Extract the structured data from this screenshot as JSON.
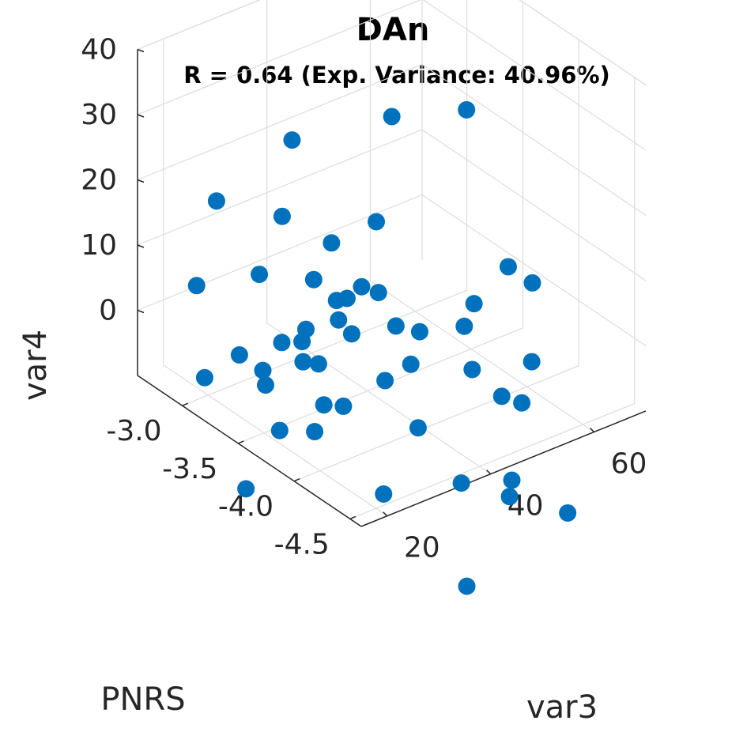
{
  "chart_data": {
    "type": "scatter3d",
    "title": "DAn",
    "subtitle": "R = 0.64 (Exp. Variance: 40.96%)",
    "xlabel": "PNRS",
    "ylabel": "var3",
    "zlabel": "var4",
    "xlim": [
      -4.6,
      -2.6
    ],
    "ylim": [
      15,
      70
    ],
    "zlim": [
      -10,
      40
    ],
    "xticks": [
      -3.0,
      -3.5,
      -4.0,
      -4.5
    ],
    "xtick_labels": [
      "-3.0",
      "-3.5",
      "-4.0",
      "-4.5"
    ],
    "yticks": [
      20,
      40,
      60
    ],
    "ytick_labels": [
      "20",
      "40",
      "60"
    ],
    "zticks": [
      0,
      10,
      20,
      30,
      40
    ],
    "ztick_labels": [
      "0",
      "10",
      "20",
      "30",
      "40"
    ],
    "grid": true,
    "marker_color": "#0072BD",
    "points": [
      {
        "x": -3.16,
        "y": 57.6,
        "z": 47.98
      },
      {
        "x": -3.46,
        "y": 60.0,
        "z": 26.21
      },
      {
        "x": -3.12,
        "y": 52.9,
        "z": 23.52
      },
      {
        "x": -3.01,
        "y": 36.0,
        "z": 24.09
      },
      {
        "x": -2.95,
        "y": 22.7,
        "z": 18.33
      },
      {
        "x": -3.43,
        "y": 43.2,
        "z": 14.11
      },
      {
        "x": -3.0,
        "y": 34.3,
        "z": 12.82
      },
      {
        "x": -3.27,
        "y": 38.0,
        "z": 10.68
      },
      {
        "x": -2.98,
        "y": 18.2,
        "z": 7.15
      },
      {
        "x": -3.18,
        "y": 26.0,
        "z": 8.68
      },
      {
        "x": -3.25,
        "y": 35.0,
        "z": 5.79
      },
      {
        "x": -3.41,
        "y": 40.8,
        "z": 4.68
      },
      {
        "x": -3.5,
        "y": 42.1,
        "z": 4.41
      },
      {
        "x": -3.38,
        "y": 36.6,
        "z": 3.58
      },
      {
        "x": -3.39,
        "y": 38.4,
        "z": 3.43
      },
      {
        "x": -3.68,
        "y": 63.3,
        "z": 3.63
      },
      {
        "x": -3.78,
        "y": 65.8,
        "z": 1.51
      },
      {
        "x": -3.43,
        "y": 35.9,
        "z": 1.4
      },
      {
        "x": -3.37,
        "y": 30.9,
        "z": 0.87
      },
      {
        "x": -3.33,
        "y": 27.1,
        "z": -0.39
      },
      {
        "x": -3.52,
        "y": 36.5,
        "z": 0.11
      },
      {
        "x": -3.67,
        "y": 56.9,
        "z": -0.09
      },
      {
        "x": -3.34,
        "y": 30.8,
        "z": -1.32
      },
      {
        "x": -3.21,
        "y": 21.5,
        "z": -1.88
      },
      {
        "x": -3.55,
        "y": 44.4,
        "z": -0.88
      },
      {
        "x": -3.68,
        "y": 54.8,
        "z": -2.76
      },
      {
        "x": -3.61,
        "y": 47.7,
        "z": -2.12
      },
      {
        "x": -3.4,
        "y": 29.7,
        "z": -3.37
      },
      {
        "x": -3.45,
        "y": 31.6,
        "z": -3.72
      },
      {
        "x": -3.35,
        "y": 23.0,
        "z": -3.12
      },
      {
        "x": -3.14,
        "y": 16.3,
        "z": -4.5
      },
      {
        "x": -3.37,
        "y": 23.1,
        "z": -5.16
      },
      {
        "x": -3.66,
        "y": 44.9,
        "z": -5.63
      },
      {
        "x": -3.61,
        "y": 41.0,
        "z": -7.46
      },
      {
        "x": -3.89,
        "y": 63.3,
        "z": -8.5
      },
      {
        "x": -3.76,
        "y": 54.6,
        "z": -8.4
      },
      {
        "x": -3.53,
        "y": 30.9,
        "z": -8.86
      },
      {
        "x": -3.58,
        "y": 33.6,
        "z": -9.36
      },
      {
        "x": -3.83,
        "y": 58.8,
        "z": -13.05
      },
      {
        "x": -3.88,
        "y": 61.6,
        "z": -14.38
      },
      {
        "x": -3.51,
        "y": 22.8,
        "z": -10.41
      },
      {
        "x": -3.61,
        "y": 27.4,
        "z": -10.91
      },
      {
        "x": -3.79,
        "y": 43.5,
        "z": -13.42
      },
      {
        "x": -3.81,
        "y": 36.4,
        "z": -21.06
      },
      {
        "x": -3.56,
        "y": 15.2,
        "z": -16.33
      },
      {
        "x": -3.95,
        "y": 48.4,
        "z": -21.62
      },
      {
        "x": -4.05,
        "y": 56.0,
        "z": -22.47
      },
      {
        "x": -4.08,
        "y": 54.9,
        "z": -24.28
      },
      {
        "x": -4.23,
        "y": 62.9,
        "z": -27.63
      },
      {
        "x": -4.17,
        "y": 44.7,
        "z": -33.7
      }
    ]
  }
}
